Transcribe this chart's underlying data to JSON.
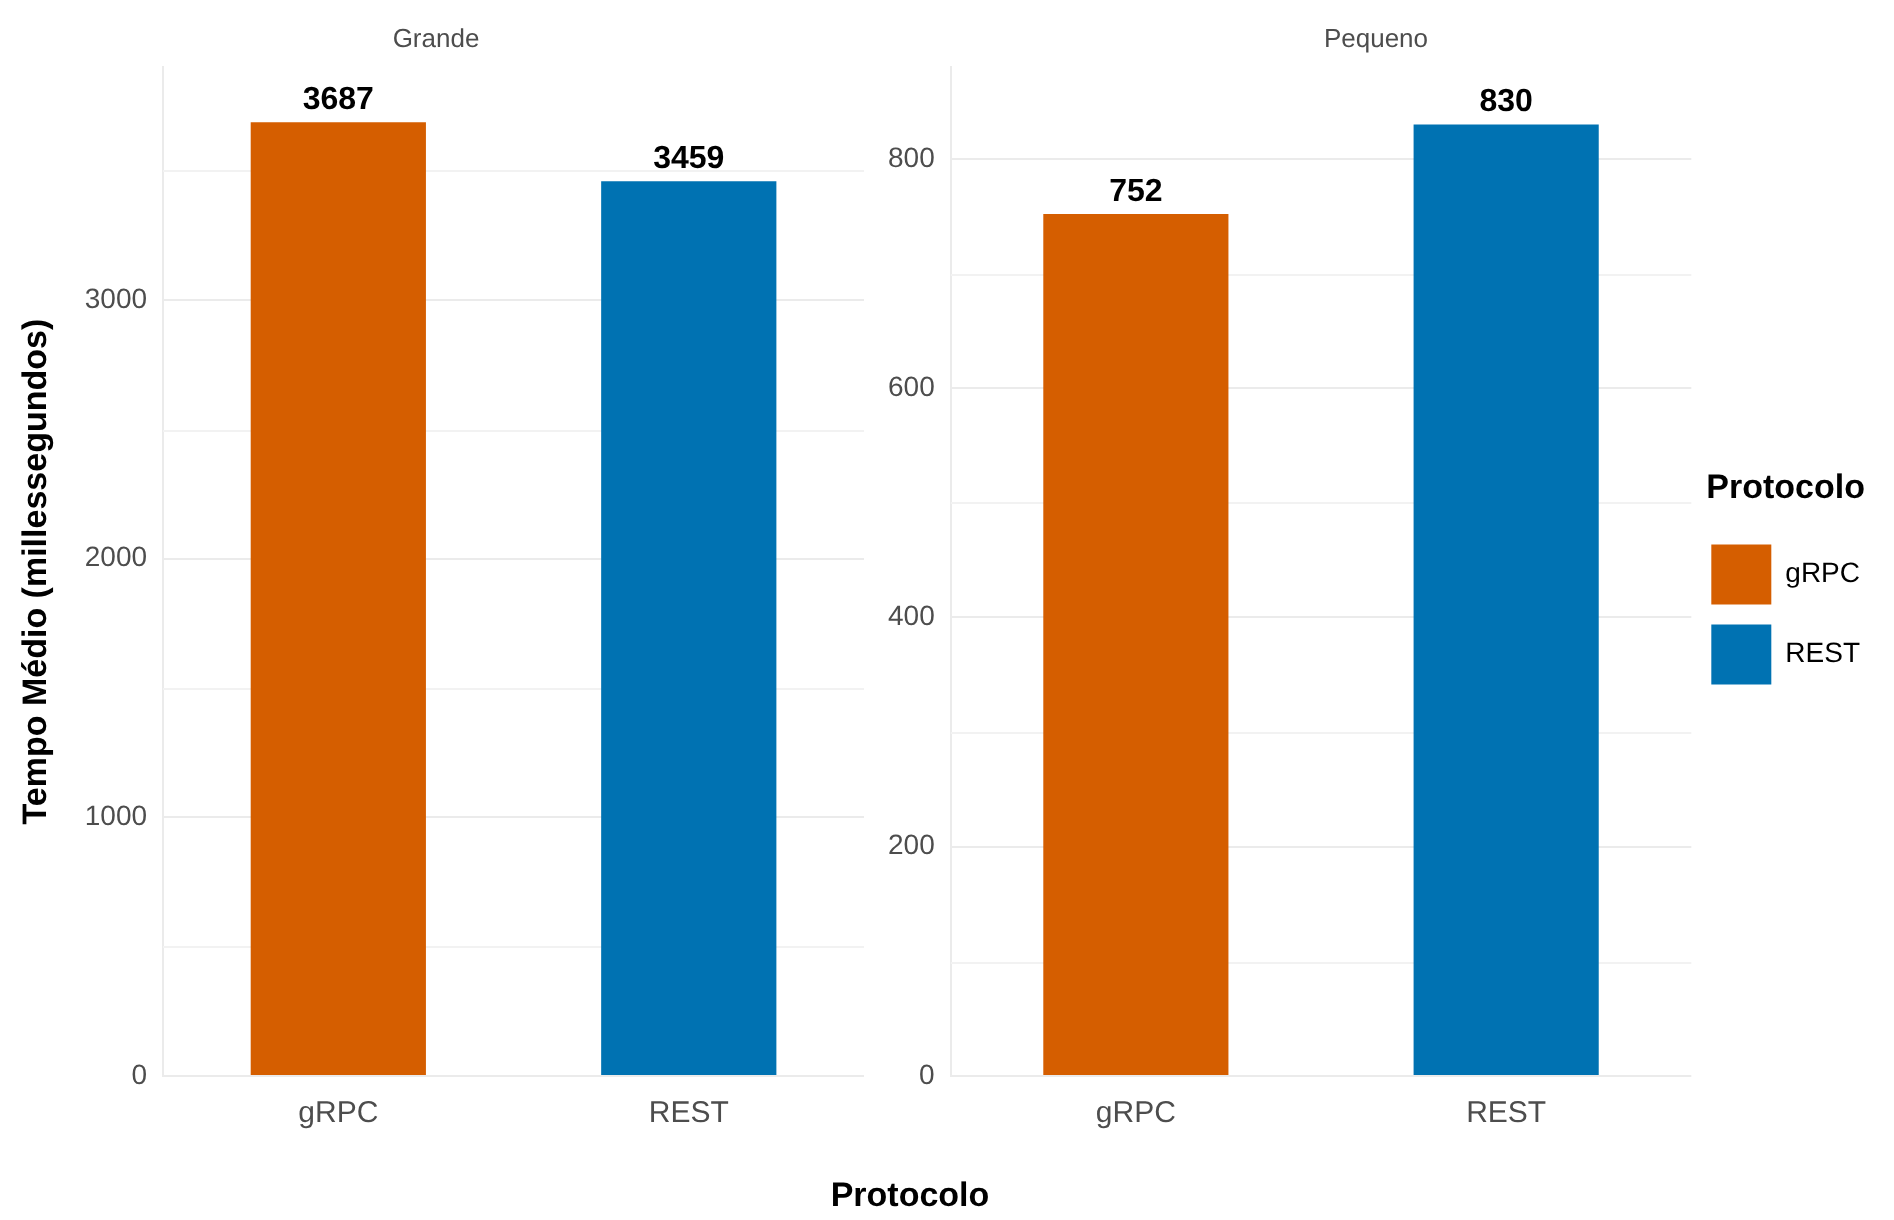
{
  "chart_data": [
    {
      "type": "bar",
      "title": "Grande",
      "xlabel": "Protocolo",
      "ylabel": "Tempo Médio (millessegundos)",
      "categories": [
        "gRPC",
        "REST"
      ],
      "series": [
        {
          "color": "#d55e00",
          "values": [
            3687,
            null
          ]
        },
        {
          "color": "#0072b2",
          "values": [
            null,
            3459
          ]
        }
      ],
      "ylim": [
        0,
        3900
      ],
      "yticks": [
        0,
        1000,
        2000,
        3000
      ],
      "grid": "y",
      "data_labels": true
    },
    {
      "type": "bar",
      "title": "Pequeno",
      "legend_title": "Protocolo",
      "legend": "right",
      "categories": [
        "gRPC",
        "REST"
      ],
      "series": [
        {
          "name": "gRPC",
          "color": "#d55e00",
          "values": [
            752,
            null
          ]
        },
        {
          "name": "REST",
          "color": "#0072b2",
          "values": [
            null,
            830
          ]
        }
      ],
      "ylim": [
        0,
        880
      ],
      "yticks": [
        0,
        200,
        400,
        600,
        800
      ],
      "grid": "y",
      "data_labels": true
    }
  ]
}
